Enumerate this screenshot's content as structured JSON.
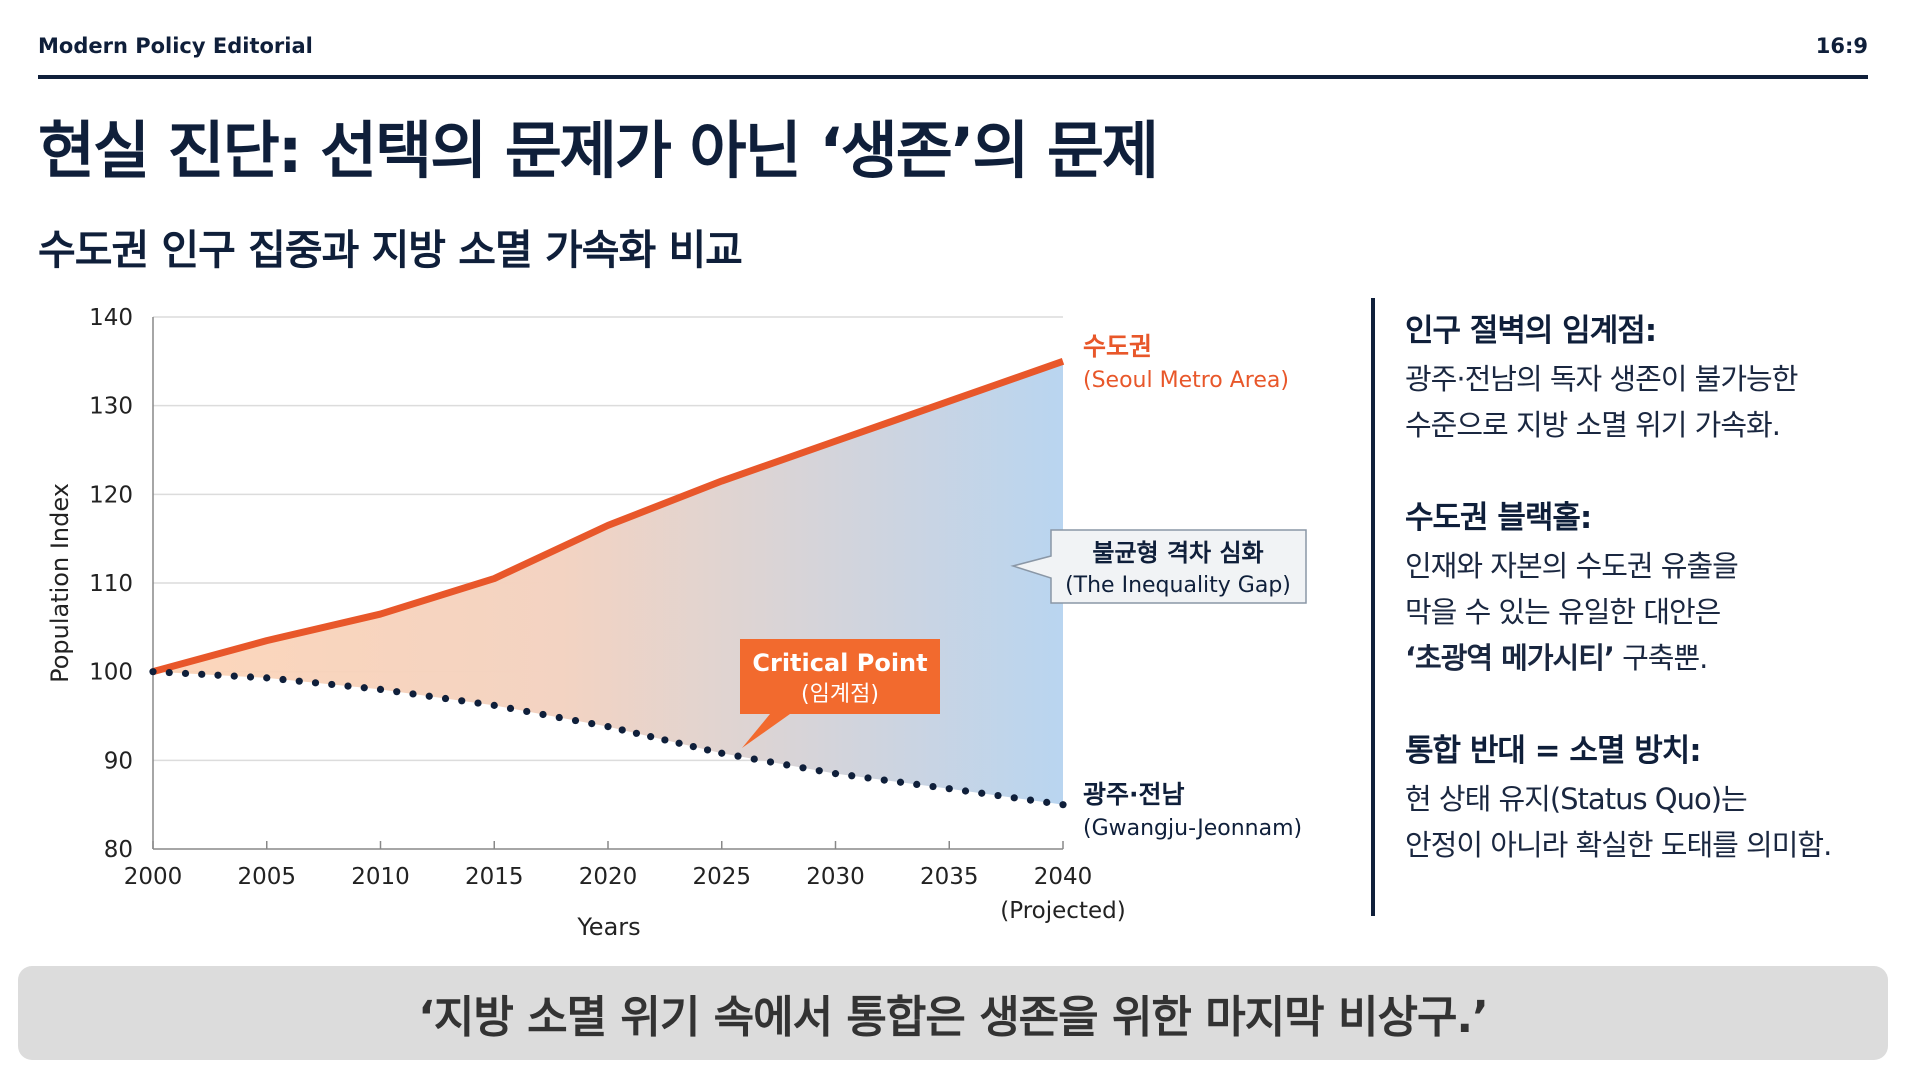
{
  "header": {
    "brand": "Modern Policy Editorial",
    "ratio": "16:9"
  },
  "title": "현실 진단: 선택의 문제가 아닌 ‘생존’의 문제",
  "subtitle": "수도권 인구 집중과 지방 소멸 가속화 비교",
  "chart_data": {
    "type": "line",
    "xlabel": "Years",
    "ylabel": "Population Index",
    "x": [
      2000,
      2005,
      2010,
      2015,
      2020,
      2025,
      2030,
      2035,
      2040
    ],
    "x_tick_labels": [
      "2000",
      "2005",
      "2010",
      "2015",
      "2020",
      "2025",
      "2030",
      "2035",
      "2040"
    ],
    "x_last_note": "(Projected)",
    "yticks": [
      80,
      90,
      100,
      110,
      120,
      130,
      140
    ],
    "ylim": [
      80,
      140
    ],
    "xlim": [
      2000,
      2040
    ],
    "grid": true,
    "series": [
      {
        "name": "수도권",
        "name_en": "(Seoul Metro Area)",
        "style": "solid",
        "color": "#e8572a",
        "values": [
          100,
          103.5,
          106.5,
          110.5,
          116.5,
          121.5,
          126,
          130.5,
          135
        ]
      },
      {
        "name": "광주·전남",
        "name_en": "(Gwangju-Jeonnam)",
        "style": "dotted",
        "color": "#0f1f3a",
        "values": [
          100,
          99.3,
          98,
          96.2,
          93.8,
          90.8,
          88.5,
          86.8,
          85
        ]
      }
    ],
    "annotations": {
      "gap": {
        "ko": "불균형 격차 심화",
        "en": "(The Inequality Gap)"
      },
      "critical": {
        "en": "Critical Point",
        "ko": "(임계점)",
        "x": 2025,
        "y": 90.8,
        "color": "#f26a2e"
      }
    }
  },
  "notes": [
    {
      "title": "인구 절벽의 임계점:",
      "lines": [
        "광주·전남의 독자 생존이 불가능한",
        "수준으로 지방 소멸 위기 가속화."
      ]
    },
    {
      "title": "수도권 블랙홀:",
      "lines": [
        "인재와 자본의 수도권 유출을",
        "막을 수 있는 유일한 대안은"
      ],
      "bold": "‘초광역 메가시티’",
      "tail": " 구축뿐."
    },
    {
      "title": "통합 반대 = 소멸 방치:",
      "lines": [
        "현 상태 유지(Status Quo)는",
        "안정이 아니라 확실한 도태를 의미함."
      ]
    }
  ],
  "quote": "‘지방 소멸 위기 속에서 통합은 생존을 위한 마지막 비상구.’"
}
